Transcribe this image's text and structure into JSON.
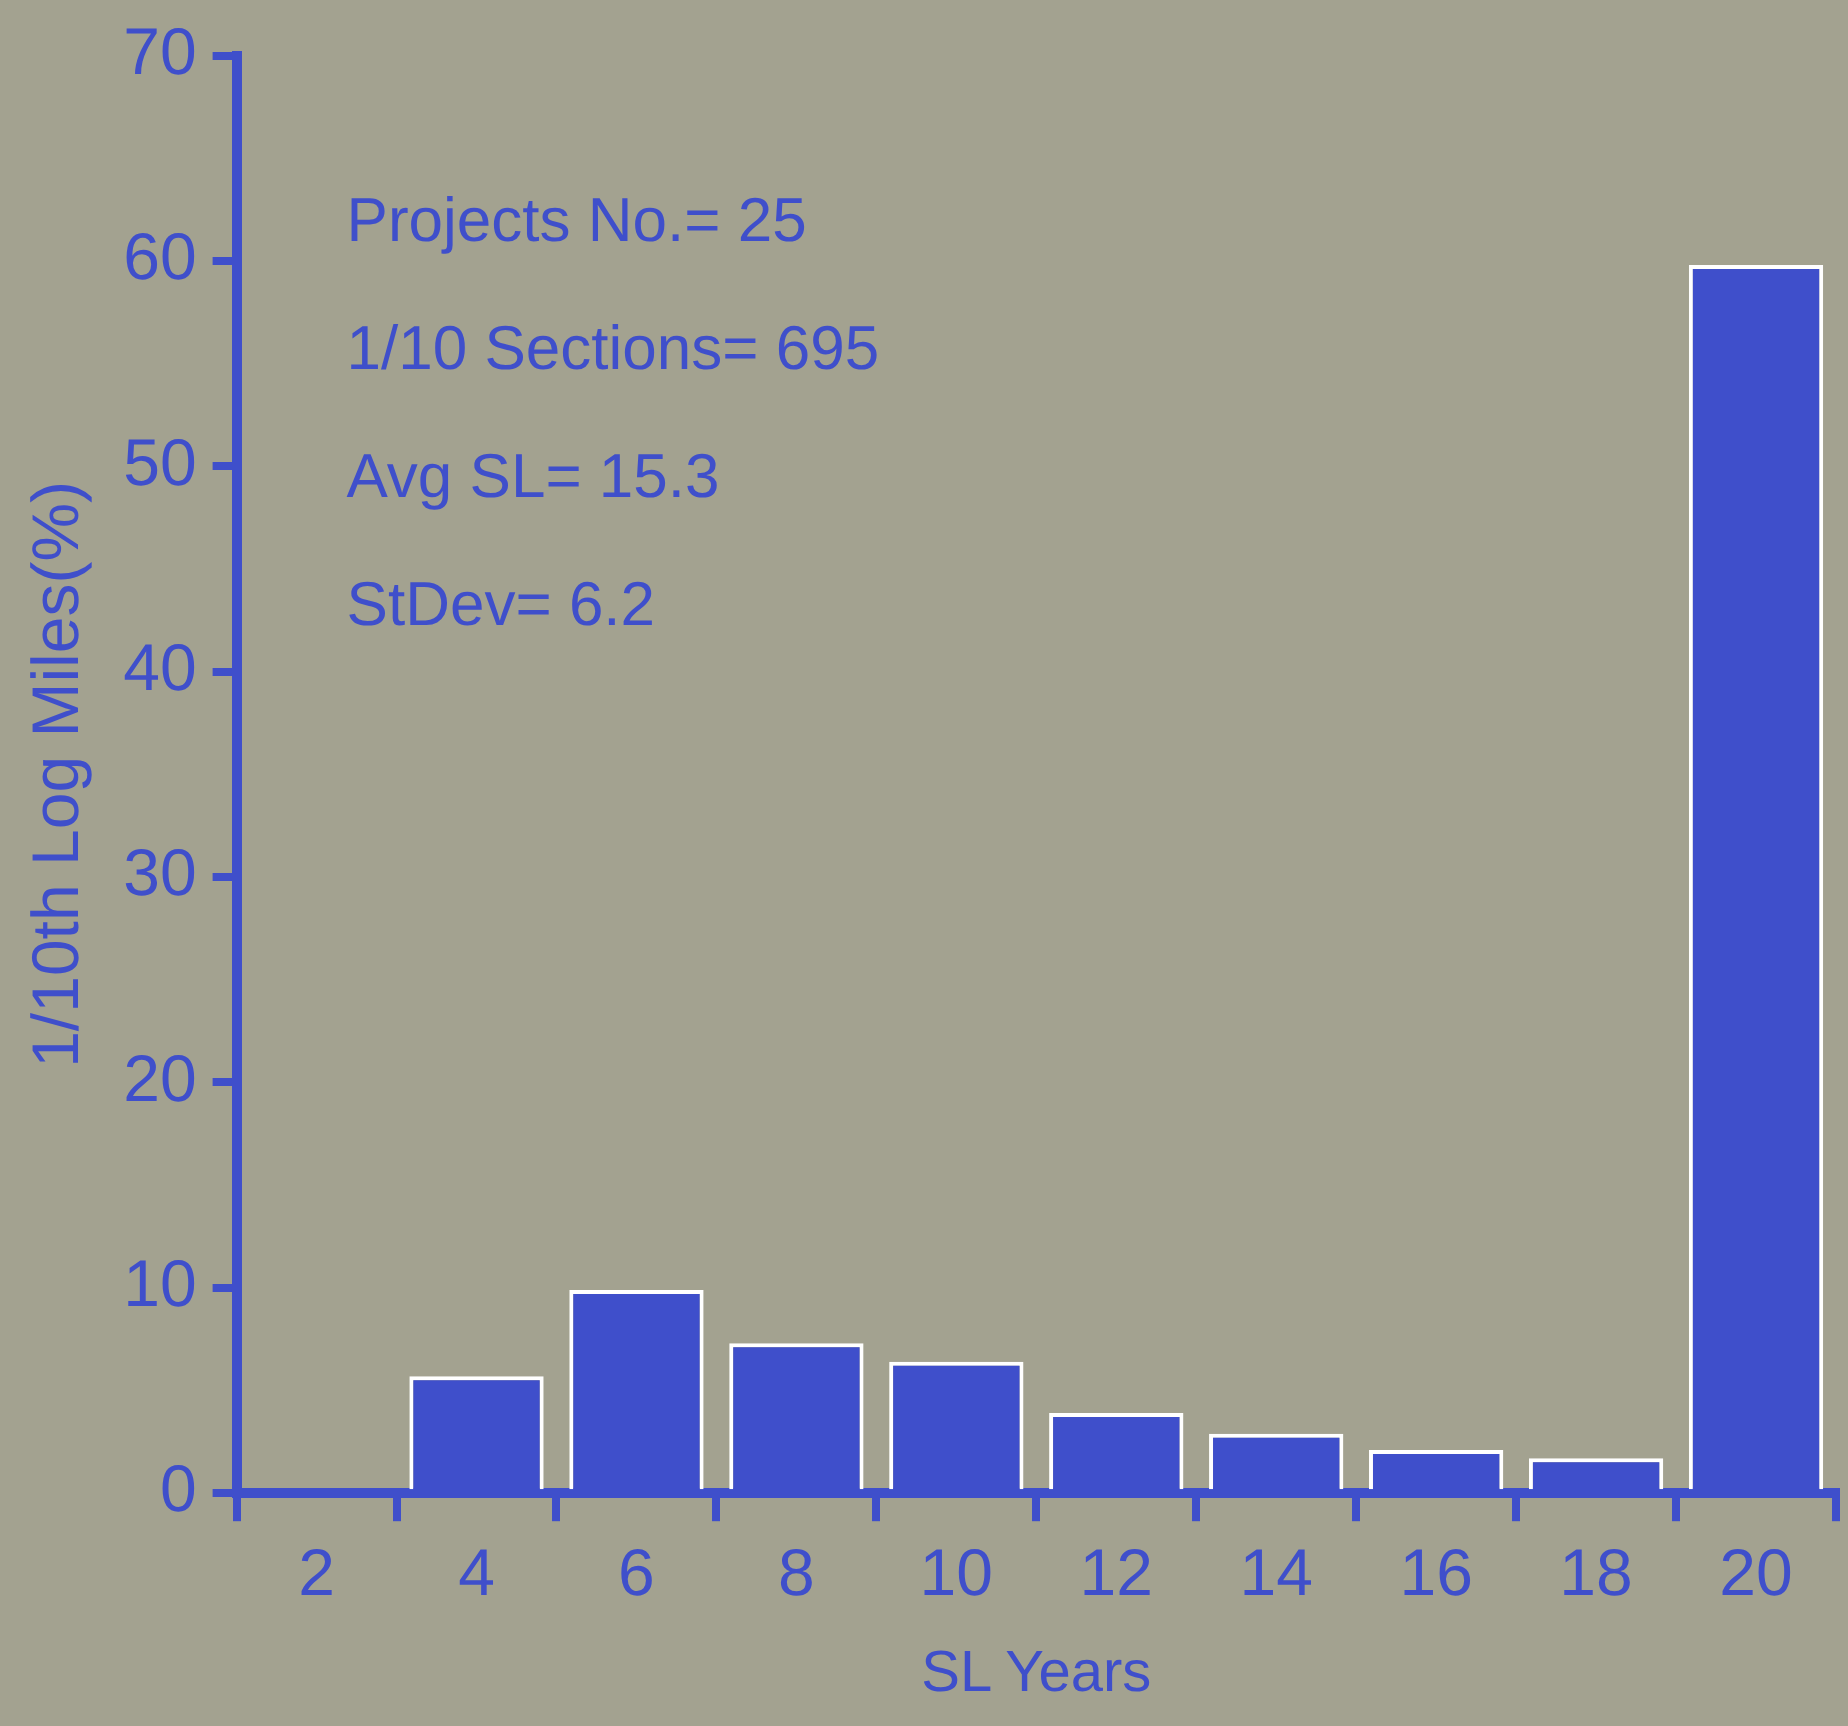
{
  "chart_data": {
    "type": "bar",
    "xlabel": "SL Years",
    "ylabel": "1/10th Log Miles(%)",
    "categories": [
      "2",
      "4",
      "6",
      "8",
      "10",
      "12",
      "14",
      "16",
      "18",
      "20"
    ],
    "values": [
      0,
      5.7,
      9.9,
      7.3,
      6.4,
      3.9,
      2.9,
      2.1,
      1.7,
      59.8
    ],
    "color": "#3f4fcb",
    "ylim": [
      0,
      70
    ],
    "yticks": [
      0,
      10,
      20,
      30,
      40,
      50,
      60,
      70
    ],
    "grid": false,
    "legend": false,
    "annotations": [
      "Projects No.= 25",
      "1/10 Sections= 695",
      "Avg SL= 15.3",
      "StDev= 6.2"
    ]
  }
}
